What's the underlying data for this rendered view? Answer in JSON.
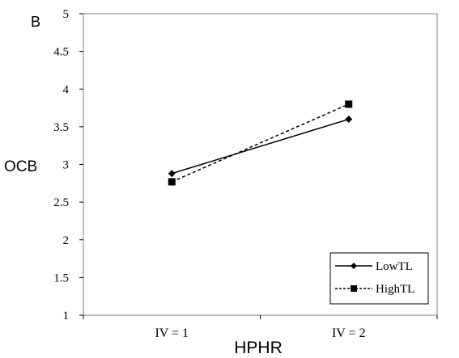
{
  "chart_data": {
    "type": "line",
    "panel_label": "B",
    "xlabel": "HPHR",
    "ylabel": "OCB",
    "categories": [
      "IV = 1",
      "IV = 2"
    ],
    "ylim": [
      1,
      5
    ],
    "yticks": [
      "1",
      "1.5",
      "2",
      "2.5",
      "3",
      "3.5",
      "4",
      "4.5",
      "5"
    ],
    "yticks_values": [
      1,
      1.5,
      2,
      2.5,
      3,
      3.5,
      4,
      4.5,
      5
    ],
    "grid": false,
    "legend_position": "bottom-right",
    "series": [
      {
        "name": "LowTL",
        "values": [
          2.88,
          3.6
        ],
        "line_style": "solid",
        "marker": "diamond",
        "color": "#000000"
      },
      {
        "name": "HighTL",
        "values": [
          2.77,
          3.8
        ],
        "line_style": "dashed",
        "marker": "square",
        "color": "#000000"
      }
    ]
  }
}
